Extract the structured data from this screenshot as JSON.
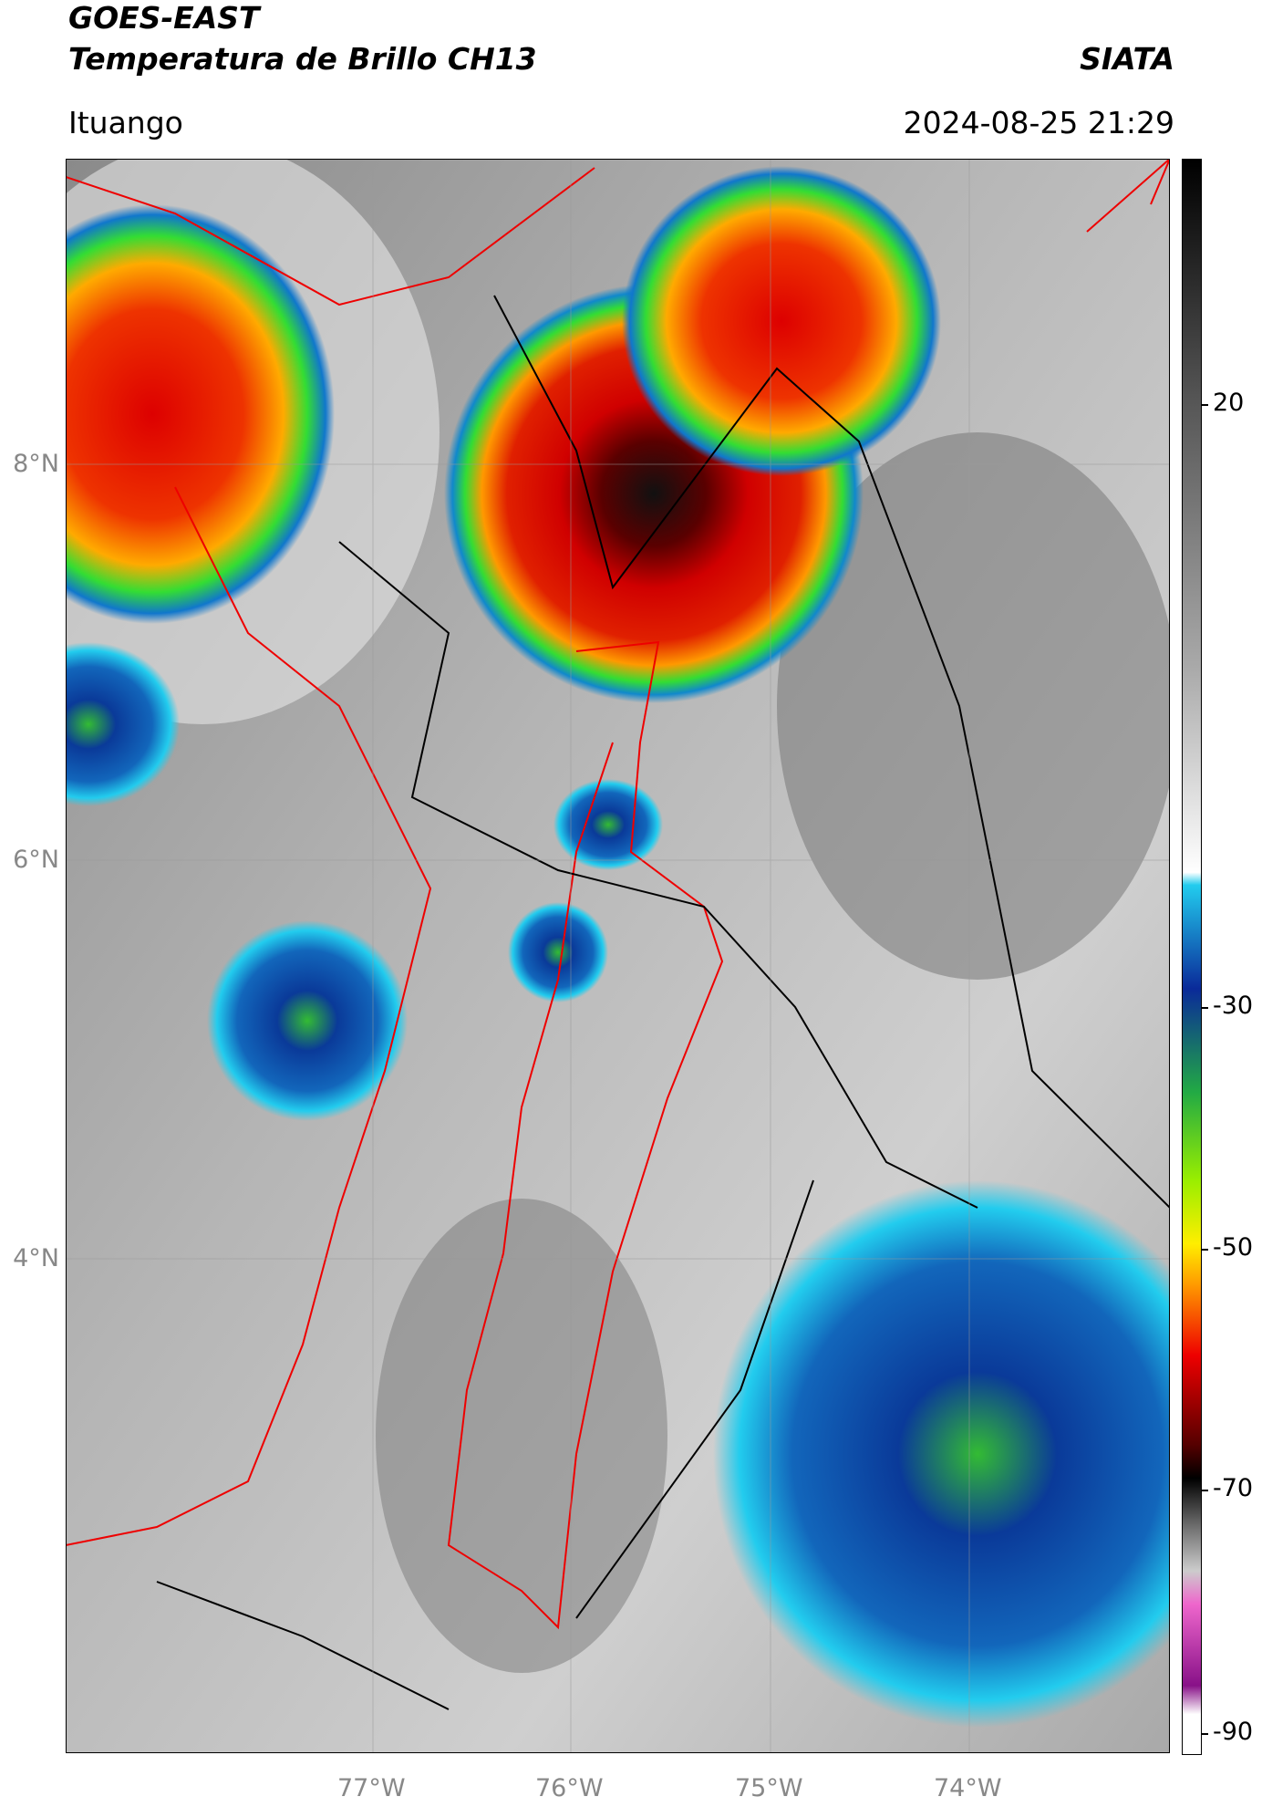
{
  "header": {
    "title": "GOES-EAST",
    "subtitle": "Temperatura de Brillo CH13",
    "brand": "SIATA",
    "location": "Ituango",
    "datetime": "2024-08-25 21:29"
  },
  "map": {
    "lat_labels": [
      "8°N",
      "6°N",
      "4°N"
    ],
    "lon_labels": [
      "77°W",
      "76°W",
      "75°W",
      "74°W"
    ]
  },
  "colorbar": {
    "ticks": [
      20,
      -30,
      -50,
      -70,
      -90
    ]
  }
}
